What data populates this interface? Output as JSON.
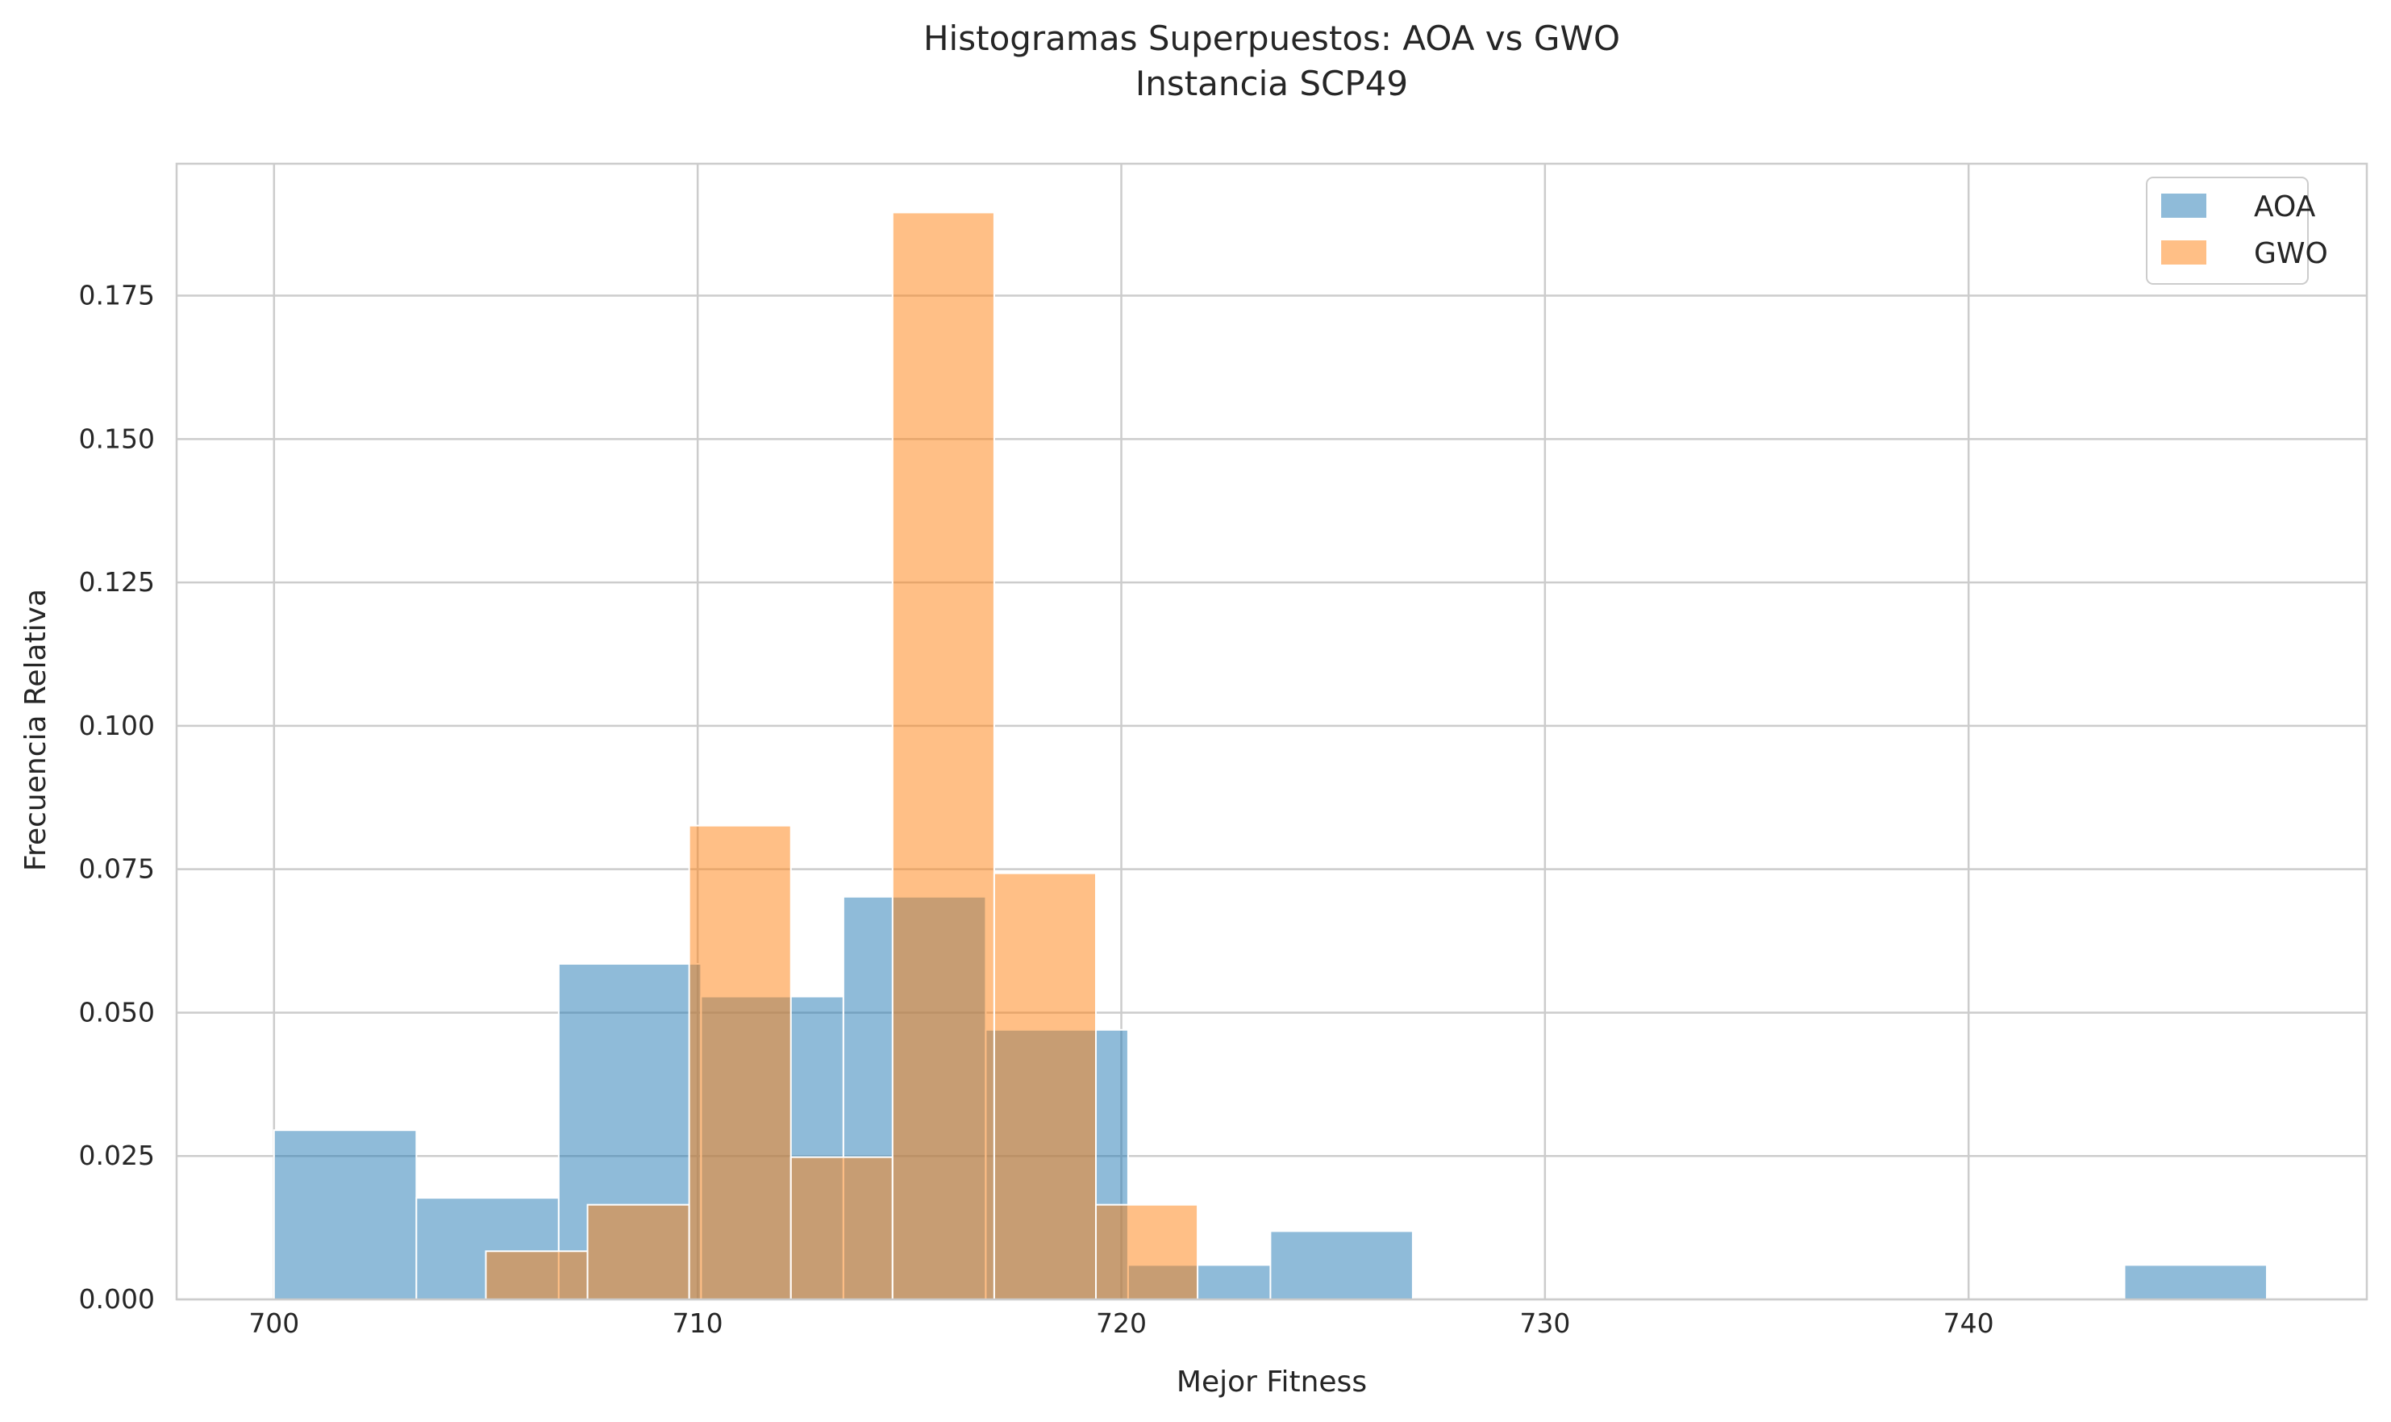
{
  "chart_data": {
    "type": "histogram",
    "title": "Histogramas Superpuestos: AOA vs GWO",
    "subtitle": "Instancia SCP49",
    "xlabel": "Mejor Fitness",
    "ylabel": "Frecuencia Relativa",
    "xlim": [
      697.7,
      749.4
    ],
    "ylim": [
      0,
      0.198
    ],
    "xticks": [
      {
        "value": 700,
        "label": "700"
      },
      {
        "value": 710,
        "label": "710"
      },
      {
        "value": 720,
        "label": "720"
      },
      {
        "value": 730,
        "label": "730"
      },
      {
        "value": 740,
        "label": "740"
      }
    ],
    "yticks": [
      {
        "value": 0,
        "label": "0.000"
      },
      {
        "value": 0.025,
        "label": "0.025"
      },
      {
        "value": 0.05,
        "label": "0.050"
      },
      {
        "value": 0.075,
        "label": "0.075"
      },
      {
        "value": 0.1,
        "label": "0.100"
      },
      {
        "value": 0.125,
        "label": "0.125"
      },
      {
        "value": 0.15,
        "label": "0.150"
      },
      {
        "value": 0.175,
        "label": "0.175"
      }
    ],
    "grid": true,
    "legend_position": "top-right",
    "series": [
      {
        "name": "AOA",
        "color": "#1f77b4",
        "bins": [
          {
            "x0": 700.0,
            "x1": 703.36,
            "value": 0.0295
          },
          {
            "x0": 703.36,
            "x1": 706.72,
            "value": 0.0177
          },
          {
            "x0": 706.72,
            "x1": 710.08,
            "value": 0.0585
          },
          {
            "x0": 710.08,
            "x1": 713.44,
            "value": 0.0528
          },
          {
            "x0": 713.44,
            "x1": 716.8,
            "value": 0.0702
          },
          {
            "x0": 716.8,
            "x1": 720.16,
            "value": 0.047
          },
          {
            "x0": 720.16,
            "x1": 723.52,
            "value": 0.006
          },
          {
            "x0": 723.52,
            "x1": 726.88,
            "value": 0.0119
          },
          {
            "x0": 743.68,
            "x1": 747.04,
            "value": 0.006
          }
        ]
      },
      {
        "name": "GWO",
        "color": "#ff7f0e",
        "bins": [
          {
            "x0": 705.0,
            "x1": 707.4,
            "value": 0.0084
          },
          {
            "x0": 707.4,
            "x1": 709.8,
            "value": 0.0165
          },
          {
            "x0": 709.8,
            "x1": 712.2,
            "value": 0.0826
          },
          {
            "x0": 712.2,
            "x1": 714.6,
            "value": 0.0248
          },
          {
            "x0": 714.6,
            "x1": 717.0,
            "value": 0.1895
          },
          {
            "x0": 717.0,
            "x1": 719.4,
            "value": 0.0743
          },
          {
            "x0": 719.4,
            "x1": 721.8,
            "value": 0.0165
          }
        ]
      }
    ]
  }
}
